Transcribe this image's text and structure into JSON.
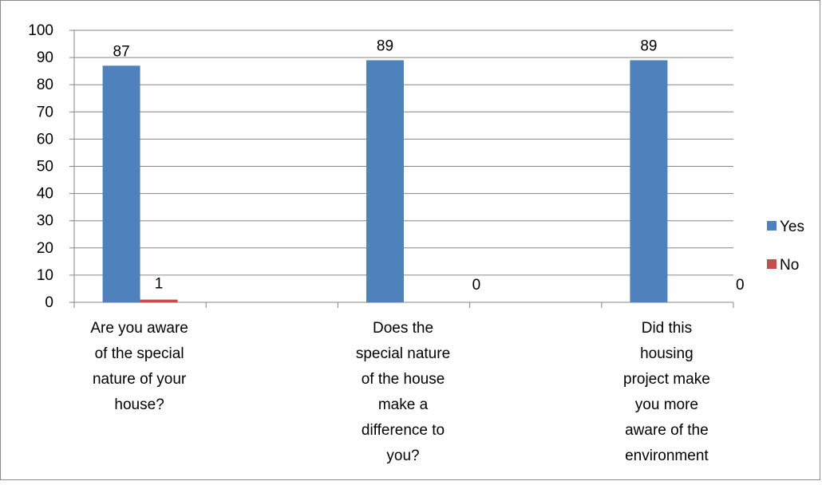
{
  "chart_data": {
    "type": "bar",
    "categories": [
      [
        "Are you aware",
        "of the special",
        "nature of your",
        "house?"
      ],
      [
        "Does the",
        "special nature",
        "of the house",
        "make a",
        "difference to",
        "you?"
      ],
      [
        "Did this",
        "housing",
        "project make",
        "you more",
        "aware of the",
        "environment"
      ]
    ],
    "series": [
      {
        "name": "Yes",
        "values": [
          87,
          89,
          89
        ],
        "data_labels": [
          "87",
          "89",
          "89"
        ]
      },
      {
        "name": "No",
        "values": [
          1,
          0,
          0
        ],
        "data_labels": [
          "1",
          "0",
          "0"
        ]
      }
    ],
    "ylim": [
      0,
      100
    ],
    "y_ticks": [
      0,
      10,
      20,
      30,
      40,
      50,
      60,
      70,
      80,
      90,
      100
    ],
    "y_tick_labels": [
      "0",
      "10",
      "20",
      "30",
      "40",
      "50",
      "60",
      "70",
      "80",
      "90",
      "100"
    ],
    "grid": true,
    "legend_position": "right",
    "colors": {
      "Yes": "#4f81bd",
      "No": "#c0504d",
      "grid": "#868686",
      "axis": "#868686"
    },
    "title": "",
    "xlabel": "",
    "ylabel": ""
  }
}
